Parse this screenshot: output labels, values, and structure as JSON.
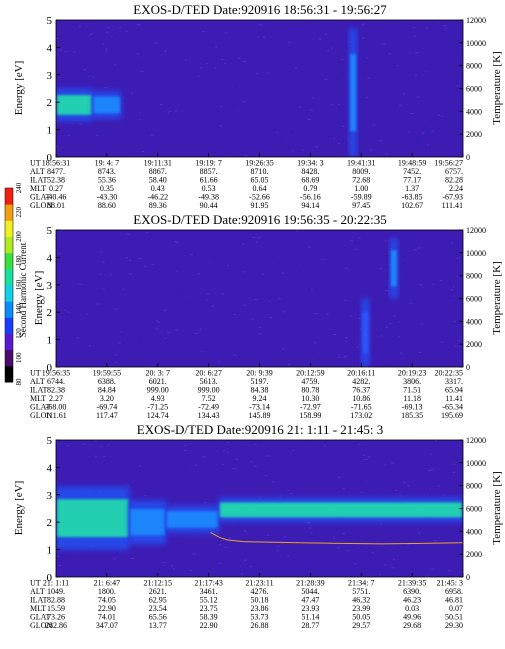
{
  "colorbar": {
    "label": "Second Harmonic Current",
    "ticks": [
      "80",
      "100",
      "120",
      "140",
      "160",
      "180",
      "200",
      "220",
      "240"
    ]
  },
  "panels": [
    {
      "title": "EXOS-D/TED   Date:920916  18:56:31 - 19:56:27",
      "ylabel": "Energy [eV]",
      "y2label": "Temperature [K]",
      "yticks": [
        "0",
        "1",
        "2",
        "3",
        "4",
        "5"
      ],
      "y2ticks": [
        "0",
        "2000",
        "4000",
        "6000",
        "8000",
        "10000",
        "12000"
      ],
      "table": {
        "row_labels": [
          "UT",
          "ALT",
          "ILAT",
          "MLT",
          "GLAT",
          "GLON"
        ],
        "columns": [
          [
            "18:56:31",
            "8477.",
            "52.38",
            "0.27",
            "-40.46",
            "88.01"
          ],
          [
            "19: 4: 7",
            "8743.",
            "55.36",
            "0.35",
            "-43.30",
            "88.60"
          ],
          [
            "19:11:31",
            "8867.",
            "58.40",
            "0.43",
            "-46.22",
            "89.36"
          ],
          [
            "19:19: 7",
            "8857.",
            "61.66",
            "0.53",
            "-49.38",
            "90.44"
          ],
          [
            "19:26:35",
            "8710.",
            "65.05",
            "0.64",
            "-52.66",
            "91.95"
          ],
          [
            "19:34: 3",
            "8428.",
            "68.69",
            "0.79",
            "-56.16",
            "94.14"
          ],
          [
            "19:41:31",
            "8009.",
            "72.68",
            "1.00",
            "-59.89",
            "97.45"
          ],
          [
            "19:48:59",
            "7452.",
            "77.17",
            "1.37",
            "-63.85",
            "102.67"
          ],
          [
            "19:56:27",
            "6757.",
            "82.28",
            "2.24",
            "-67.93",
            "111.41"
          ]
        ]
      }
    },
    {
      "title": "EXOS-D/TED   Date:920916  19:56:35 - 20:22:35",
      "ylabel": "Energy [eV]",
      "y2label": "Temperature [K]",
      "yticks": [
        "0",
        "1",
        "2",
        "3",
        "4",
        "5"
      ],
      "y2ticks": [
        "0",
        "2000",
        "4000",
        "6000",
        "8000",
        "10000",
        "12000"
      ],
      "table": {
        "row_labels": [
          "UT",
          "ALT",
          "ILAT",
          "MLT",
          "GLAT",
          "GLON"
        ],
        "columns": [
          [
            "19:56:35",
            "6744.",
            "82.38",
            "2.27",
            "-68.00",
            "111.61"
          ],
          [
            "19:59:55",
            "6388.",
            "84.84",
            "3.20",
            "-69.74",
            "117.47"
          ],
          [
            "20: 3: 7",
            "6021.",
            "999.00",
            "4.93",
            "-71.25",
            "124.74"
          ],
          [
            "20: 6:27",
            "5613.",
            "999.00",
            "7.52",
            "-72.49",
            "134.43"
          ],
          [
            "20: 9:39",
            "5197.",
            "84.38",
            "9.24",
            "-73.14",
            "145.89"
          ],
          [
            "20:12:59",
            "4759.",
            "80.78",
            "10.30",
            "-72.97",
            "158.99"
          ],
          [
            "20:16:11",
            "4282.",
            "76.37",
            "10.86",
            "-71.65",
            "173.02"
          ],
          [
            "20:19:23",
            "3806.",
            "71.51",
            "11.18",
            "-69.13",
            "185.35"
          ],
          [
            "20:22:35",
            "3317.",
            "65.94",
            "11.41",
            "-65.34",
            "195.69"
          ]
        ]
      }
    },
    {
      "title": "EXOS-D/TED   Date:920916  21: 1:11 - 21:45: 3",
      "ylabel": "Energy [eV]",
      "y2label": "Temperature [K]",
      "yticks": [
        "0",
        "1",
        "2",
        "3",
        "4",
        "5"
      ],
      "y2ticks": [
        "0",
        "2000",
        "4000",
        "6000",
        "8000",
        "10000",
        "12000"
      ],
      "table": {
        "row_labels": [
          "UT",
          "ALT",
          "ILAT",
          "MLT",
          "GLAT",
          "GLON"
        ],
        "columns": [
          [
            "21: 1:11",
            "1049.",
            "82.88",
            "15.59",
            "73.26",
            "282.86"
          ],
          [
            "21: 6:47",
            "1800.",
            "74.05",
            "22.90",
            "74.01",
            "347.07"
          ],
          [
            "21:12:15",
            "2621.",
            "62.95",
            "23.54",
            "65.56",
            "13.77"
          ],
          [
            "21:17:43",
            "3461.",
            "55.12",
            "23.75",
            "58.39",
            "22.90"
          ],
          [
            "21:23:11",
            "4276.",
            "50.18",
            "23.86",
            "53.73",
            "26.88"
          ],
          [
            "21:28:39",
            "5044.",
            "47.47",
            "23.93",
            "51.14",
            "28.77"
          ],
          [
            "21:34: 7",
            "5751.",
            "46.32",
            "23.99",
            "50.05",
            "29.57"
          ],
          [
            "21:39:35",
            "6390.",
            "46.23",
            "0.03",
            "49.96",
            "29.68"
          ],
          [
            "21:45: 3",
            "6958.",
            "46.81",
            "0.07",
            "50.51",
            "29.30"
          ]
        ]
      }
    }
  ],
  "chart_data": [
    {
      "type": "heatmap",
      "title": "EXOS-D/TED   Date:920916  18:56:31 - 19:56:27",
      "ylabel": "Energy [eV]",
      "y2label": "Temperature [K]",
      "ylim": [
        0,
        5
      ],
      "y2lim": [
        0,
        12000
      ],
      "x": [
        "18:56:31",
        "19: 4: 7",
        "19:11:31",
        "19:19: 7",
        "19:26:35",
        "19:34: 3",
        "19:41:31",
        "19:48:59",
        "19:56:27"
      ],
      "features": [
        {
          "t": [
            0.0,
            0.09
          ],
          "e": [
            1.3,
            2.5
          ],
          "level": "high"
        },
        {
          "t": [
            0.09,
            0.16
          ],
          "e": [
            1.4,
            2.4
          ],
          "level": "medium"
        },
        {
          "t": [
            0.72,
            0.74
          ],
          "e": [
            0.0,
            4.7
          ],
          "level": "medium"
        }
      ],
      "temperature": []
    },
    {
      "type": "heatmap",
      "title": "EXOS-D/TED   Date:920916  19:56:35 - 20:22:35",
      "ylabel": "Energy [eV]",
      "y2label": "Temperature [K]",
      "ylim": [
        0,
        5
      ],
      "y2lim": [
        0,
        12000
      ],
      "x": [
        "19:56:35",
        "19:59:55",
        "20: 3: 7",
        "20: 6:27",
        "20: 9:39",
        "20:12:59",
        "20:16:11",
        "20:19:23",
        "20:22:35"
      ],
      "features": [
        {
          "t": [
            0.82,
            0.84
          ],
          "e": [
            2.5,
            4.7
          ],
          "level": "medium"
        },
        {
          "t": [
            0.75,
            0.77
          ],
          "e": [
            0.0,
            2.5
          ],
          "level": "low"
        }
      ],
      "temperature": []
    },
    {
      "type": "heatmap",
      "title": "EXOS-D/TED   Date:920916  21: 1:11 - 21:45: 3",
      "ylabel": "Energy [eV]",
      "y2label": "Temperature [K]",
      "ylim": [
        0,
        5
      ],
      "y2lim": [
        0,
        12000
      ],
      "x": [
        "21: 1:11",
        "21: 6:47",
        "21:12:15",
        "21:17:43",
        "21:23:11",
        "21:28:39",
        "21:34: 7",
        "21:39:35",
        "21:45: 3"
      ],
      "features": [
        {
          "t": [
            0.0,
            0.18
          ],
          "e": [
            1.0,
            3.3
          ],
          "level": "high"
        },
        {
          "t": [
            0.18,
            0.27
          ],
          "e": [
            1.2,
            2.8
          ],
          "level": "medium"
        },
        {
          "t": [
            0.27,
            0.4
          ],
          "e": [
            1.6,
            2.6
          ],
          "level": "medium"
        },
        {
          "t": [
            0.4,
            1.0
          ],
          "e": [
            2.0,
            2.9
          ],
          "level": "high"
        }
      ],
      "temperature": [
        {
          "t": 0.38,
          "T": 3900
        },
        {
          "t": 0.4,
          "T": 3500
        },
        {
          "t": 0.42,
          "T": 3250
        },
        {
          "t": 0.46,
          "T": 3100
        },
        {
          "t": 0.52,
          "T": 3050
        },
        {
          "t": 0.6,
          "T": 3000
        },
        {
          "t": 0.7,
          "T": 2950
        },
        {
          "t": 0.8,
          "T": 2900
        },
        {
          "t": 0.9,
          "T": 2950
        },
        {
          "t": 1.0,
          "T": 3000
        }
      ]
    }
  ]
}
